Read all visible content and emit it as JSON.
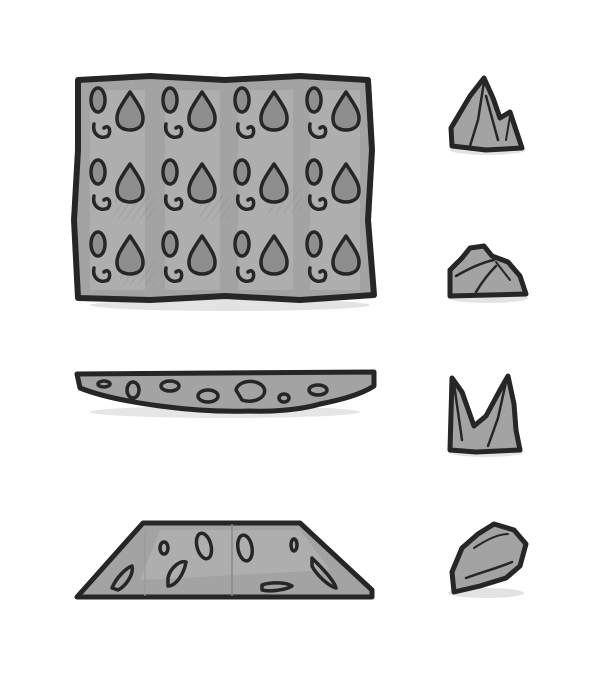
{
  "sprite_sheet": {
    "background": "#ffffff",
    "palette": {
      "ink": "#262626",
      "stone": "#9a9a9a",
      "stone_light": "#b6b6b6",
      "stone_dark": "#7c7c7c",
      "shadow": "#e3e3e3"
    },
    "tiles": [
      {
        "name": "cobblestone-wall-tile",
        "grid_columns": 4,
        "grid_rows": 3,
        "stones_per_cell": 3
      },
      {
        "name": "flat-rock-ledge"
      },
      {
        "name": "rock-mound-trapezoid"
      }
    ],
    "rocks": [
      {
        "name": "rock-spire"
      },
      {
        "name": "small-boulder"
      },
      {
        "name": "twin-spikes"
      },
      {
        "name": "tilted-boulder"
      }
    ]
  }
}
